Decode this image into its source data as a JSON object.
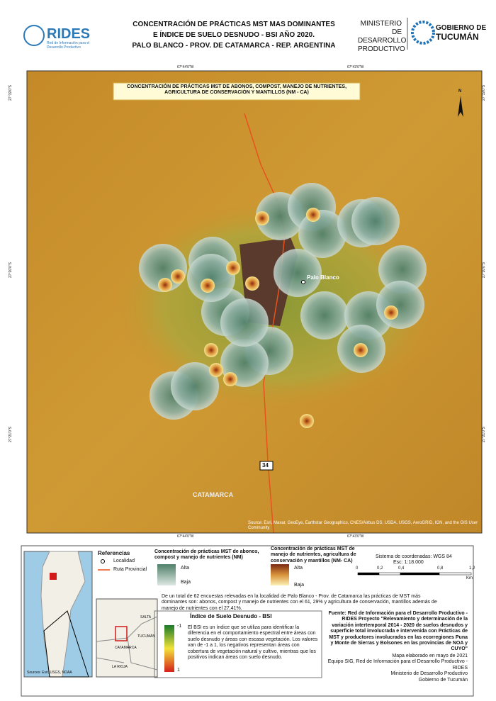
{
  "header": {
    "logo": "RIDES",
    "logo_subtitle": "Red de Información para el Desarrollo Productivo",
    "title": [
      "CONCENTRACIÓN DE PRÁCTICAS MST MAS DOMINANTES",
      "E ÍNDICE DE SUELO DESNUDO - BSI AÑO 2020.",
      "PALO BLANCO - PROV. DE CATAMARCA - REP. ARGENTINA"
    ],
    "ministry": [
      "MINISTERIO DE",
      "DESARROLLO",
      "PRODUCTIVO"
    ],
    "government": [
      "GOBIERNO DE",
      "TUCUMÁN"
    ]
  },
  "map": {
    "title": "CONCENTRACIÓN DE PRÁCTICAS MST DE ABONOS, COMPOST, MANEJO DE NUTRIENTES, AGRICULTURA DE CONSERVACIÓN Y MANTILLOS (NM - CA)",
    "lon_labels": [
      "67°44'0\"W",
      "67°43'0\"W"
    ],
    "lat_labels": [
      "27°19'0\"S",
      "27°20'0\"S",
      "27°21'0\"S"
    ],
    "north": "N",
    "locality": "Palo Blanco",
    "route": "34",
    "province": "CATAMARCA",
    "attribution": "Source: Esri, Maxar, GeoEye, Earthstar Geographics, CNES/Airbus DS, USDA, USGS, AeroGRID, IGN, and the GIS User Community"
  },
  "inset": {
    "source": "Sources: Esri, USGS, NOAA",
    "provinces": [
      "SALTA",
      "TUCUMÁN",
      "CATAMARCA",
      "LA RIOJA"
    ]
  },
  "legend": {
    "title": "Referencias",
    "items": [
      "Localidad",
      "Ruta Provincial"
    ],
    "nm": {
      "title": "Concentración de prácticas MST de abonos, compost y manejo de nutrientes (NM)",
      "high": "Alta",
      "low": "Baja"
    },
    "nmca": {
      "title": "Concentración de prácticas MST de manejo de nutrientes, agricultura de conservación y mantillos (NM- CA)",
      "high": "Alta",
      "low": "Baja"
    },
    "crs": "Sistema de coordenadas: WGS 84",
    "scale": "Esc: 1:18.000",
    "scale_ticks": [
      "0",
      "0,2",
      "0,4",
      "0,8",
      "1,2"
    ],
    "scale_unit": "Km",
    "summary": "De un total de 62 encuestas relevadas en la localidad de Palo Blanco - Prov. de Catamarca las prácticas de MST más dominantes son: abonos, compost y manejo de nutrientes con el 61, 29% y agricultura de conservación, mantillos además de manejo de nutrientes con el 27,41%.",
    "bsi": {
      "title": "Índice de Suelo Desnudo - BSI",
      "min": "-1",
      "max": "1",
      "text": "El BSI es un índice que se utiliza para identificar la diferencia en el comportamiento espectral entre áreas con suelo desnudo y áreas con escasa vegetación. Los valores van de -1 a 1, los negativos representan áreas con cobertura de vegetación natural y cultivo, mientras que los positivos indican áreas con suelo desnudo."
    }
  },
  "footer": {
    "source": "Fuente: Red de Información para el Desarrollo Productivo - RIDES Proyecto \"Relevamiento y determinación de la variación intertemporal 2014 - 2020 de suelos desnudos y superficie total involucrada e intervenida con Prácticas de MST y productores involucrados en las ecorregiones Puna y Monte de Sierras y Bolsones en las provincias de NOA y CUYO\"",
    "credits": [
      "Mapa elaborado en mayo de 2021",
      "Equipo SIG, Red de Información para el Desarrollo Productivo - RIDES",
      "Ministerio de Desarrollo Productivo",
      "Gobierno de Tucumán"
    ]
  }
}
